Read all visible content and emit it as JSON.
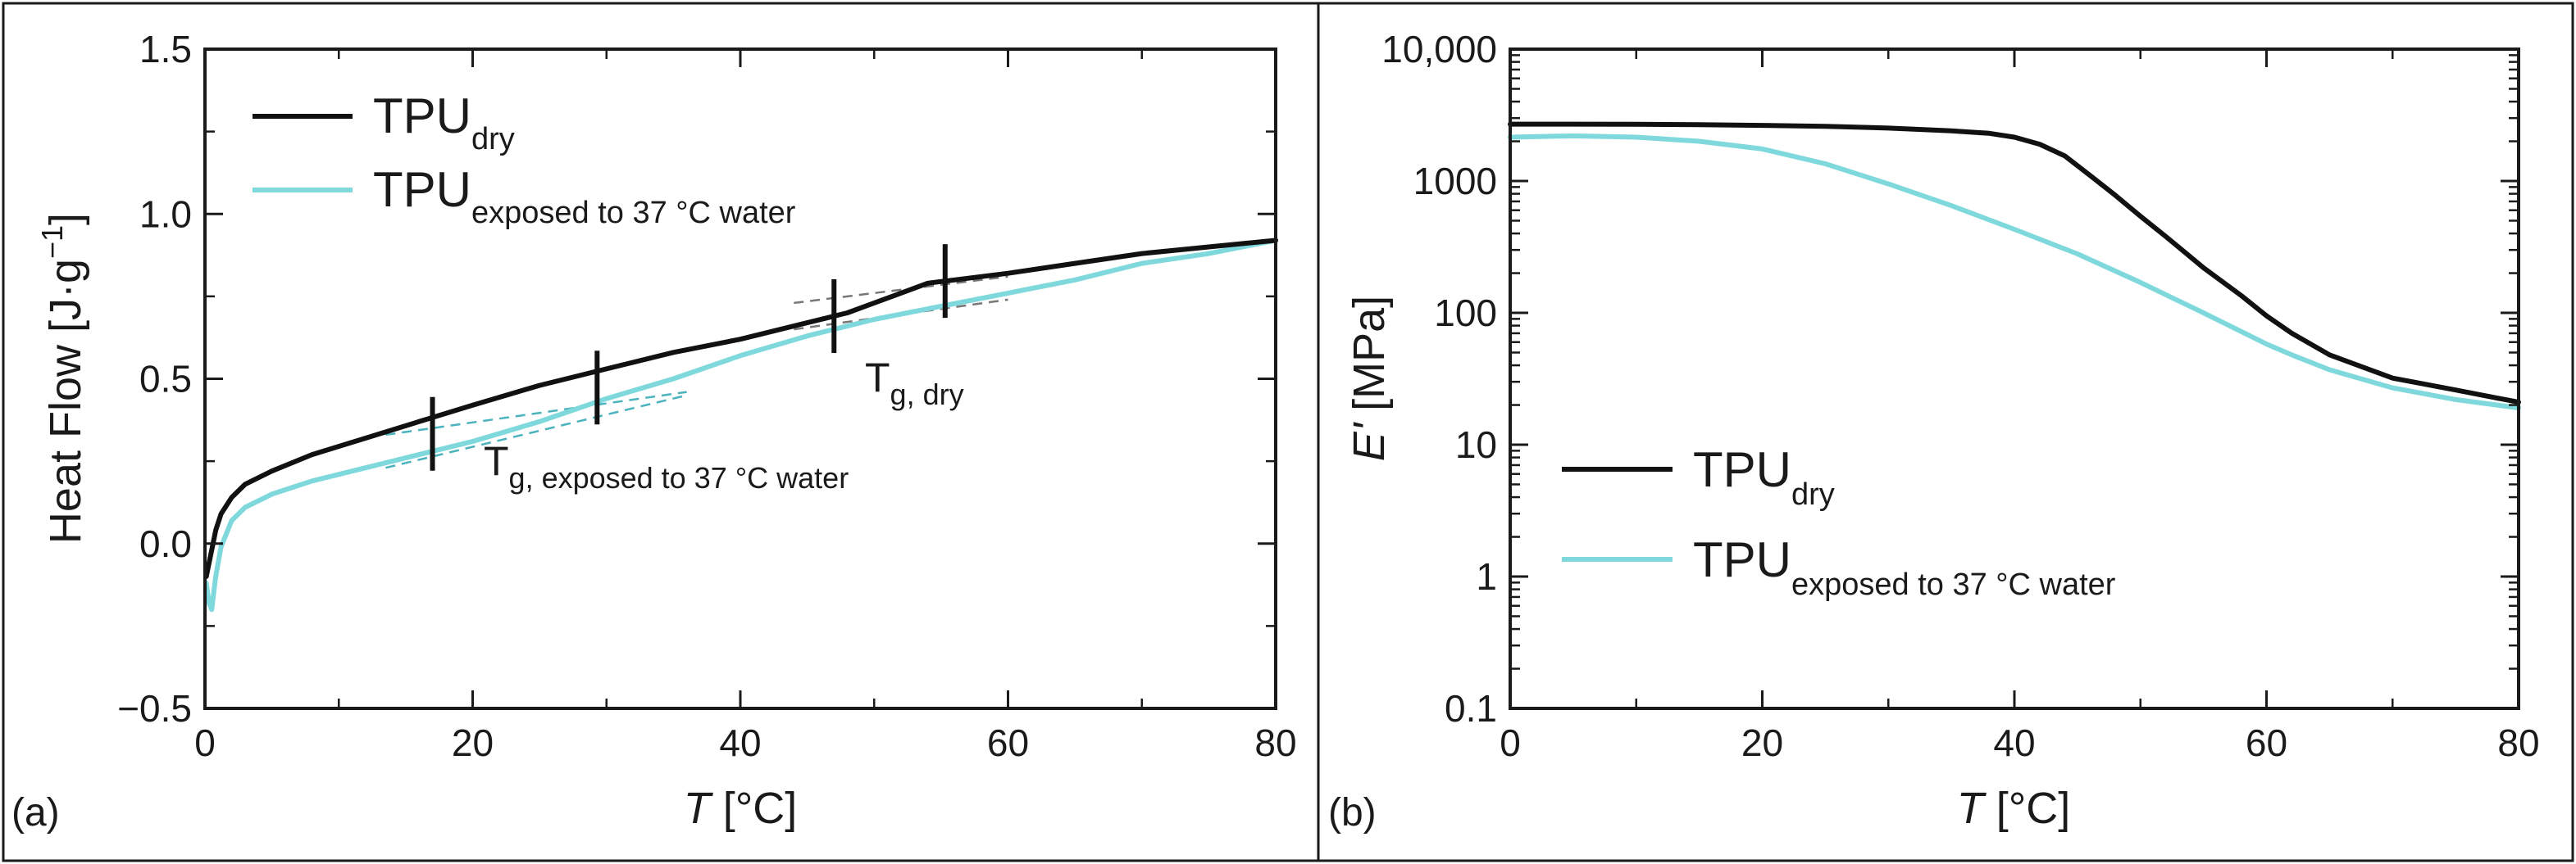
{
  "figure": {
    "panel_a_label": "(a)",
    "panel_b_label": "(b)",
    "dry_color": "#111111",
    "water_color": "#7fd9dc",
    "tangent_dry_color": "#777777",
    "tangent_water_color": "#4bb3bd"
  },
  "chart_data": [
    {
      "type": "line",
      "panel": "a",
      "xlabel_italic": "T",
      "xlabel_unit": " [°C]",
      "ylabel": "Heat Flow [J·g",
      "ylabel_exp": "−1",
      "ylabel_close": "]",
      "xlim": [
        0,
        80
      ],
      "ylim": [
        -0.5,
        1.5
      ],
      "xticks": [
        0,
        20,
        40,
        60,
        80
      ],
      "xtick_labels": [
        "0",
        "20",
        "40",
        "60",
        "80"
      ],
      "yticks": [
        -0.5,
        0.0,
        0.5,
        1.0,
        1.5
      ],
      "ytick_labels": [
        "−0.5",
        "0.0",
        "0.5",
        "1.0",
        "1.5"
      ],
      "legend_position": "top-left",
      "series": [
        {
          "name_main": "TPU",
          "name_sub": "dry",
          "color_key": "dry",
          "x": [
            0.1,
            0.3,
            0.5,
            0.8,
            1.2,
            2,
            3,
            5,
            8,
            12,
            16,
            20,
            25,
            30,
            35,
            40,
            45,
            48,
            50,
            52,
            54,
            56,
            60,
            65,
            70,
            75,
            80
          ],
          "y": [
            -0.1,
            -0.06,
            -0.02,
            0.04,
            0.09,
            0.14,
            0.18,
            0.22,
            0.27,
            0.32,
            0.37,
            0.42,
            0.48,
            0.53,
            0.58,
            0.62,
            0.67,
            0.7,
            0.73,
            0.76,
            0.79,
            0.8,
            0.82,
            0.85,
            0.88,
            0.9,
            0.92
          ]
        },
        {
          "name_main": "TPU",
          "name_sub": "exposed to 37 °C water",
          "color_key": "water",
          "x": [
            0.1,
            0.3,
            0.5,
            0.8,
            1.2,
            2,
            3,
            5,
            8,
            12,
            16,
            20,
            25,
            30,
            35,
            40,
            45,
            50,
            55,
            60,
            65,
            70,
            75,
            80
          ],
          "y": [
            -0.12,
            -0.18,
            -0.2,
            -0.1,
            -0.01,
            0.07,
            0.11,
            0.15,
            0.19,
            0.23,
            0.27,
            0.31,
            0.37,
            0.44,
            0.5,
            0.57,
            0.63,
            0.68,
            0.72,
            0.76,
            0.8,
            0.85,
            0.88,
            0.92
          ]
        }
      ],
      "transition_markers_x": [
        17,
        29.3,
        47,
        55.3
      ],
      "tangent_lines": [
        {
          "style": "water",
          "x": [
            13.5,
            36
          ],
          "y": [
            0.33,
            0.46
          ]
        },
        {
          "style": "water",
          "x": [
            13.5,
            36
          ],
          "y": [
            0.23,
            0.45
          ]
        },
        {
          "style": "dry",
          "x": [
            44,
            60
          ],
          "y": [
            0.73,
            0.81
          ]
        },
        {
          "style": "dry",
          "x": [
            44,
            60
          ],
          "y": [
            0.65,
            0.74
          ]
        }
      ],
      "annotations": [
        {
          "main": "T",
          "sub": "g, dry",
          "x": 49,
          "y": 0.44
        },
        {
          "main": "T",
          "sub": "g, exposed to 37 °C water",
          "x": 20.5,
          "y": 0.19
        }
      ]
    },
    {
      "type": "line",
      "panel": "b",
      "xlabel_italic": "T",
      "xlabel_unit": " [°C]",
      "ylabel_italic": "E'",
      "ylabel": " [MPa]",
      "yscale": "log",
      "xlim": [
        0,
        80
      ],
      "ylim": [
        0.1,
        10000
      ],
      "xticks": [
        0,
        20,
        40,
        60,
        80
      ],
      "xtick_labels": [
        "0",
        "20",
        "40",
        "60",
        "80"
      ],
      "yticks": [
        0.1,
        1,
        10,
        100,
        1000,
        10000
      ],
      "ytick_labels": [
        "0.1",
        "1",
        "10",
        "100",
        "1000",
        "10,000"
      ],
      "legend_position": "center-left",
      "series": [
        {
          "name_main": "TPU",
          "name_sub": "dry",
          "color_key": "dry",
          "x": [
            0,
            5,
            10,
            15,
            20,
            25,
            30,
            35,
            38,
            40,
            42,
            44,
            46,
            48,
            50,
            52,
            55,
            58,
            60,
            62,
            65,
            70,
            75,
            80
          ],
          "y": [
            2700,
            2700,
            2690,
            2670,
            2640,
            2600,
            2520,
            2400,
            2300,
            2150,
            1900,
            1550,
            1100,
            780,
            540,
            380,
            220,
            135,
            95,
            70,
            48,
            32,
            26,
            21
          ]
        },
        {
          "name_main": "TPU",
          "name_sub": "exposed to 37 °C water",
          "color_key": "water",
          "x": [
            0,
            5,
            10,
            15,
            20,
            25,
            30,
            35,
            40,
            45,
            50,
            55,
            60,
            62,
            65,
            70,
            75,
            80
          ],
          "y": [
            2150,
            2200,
            2150,
            2000,
            1750,
            1350,
            950,
            650,
            430,
            280,
            170,
            100,
            58,
            48,
            37,
            27,
            22,
            19
          ]
        }
      ]
    }
  ]
}
